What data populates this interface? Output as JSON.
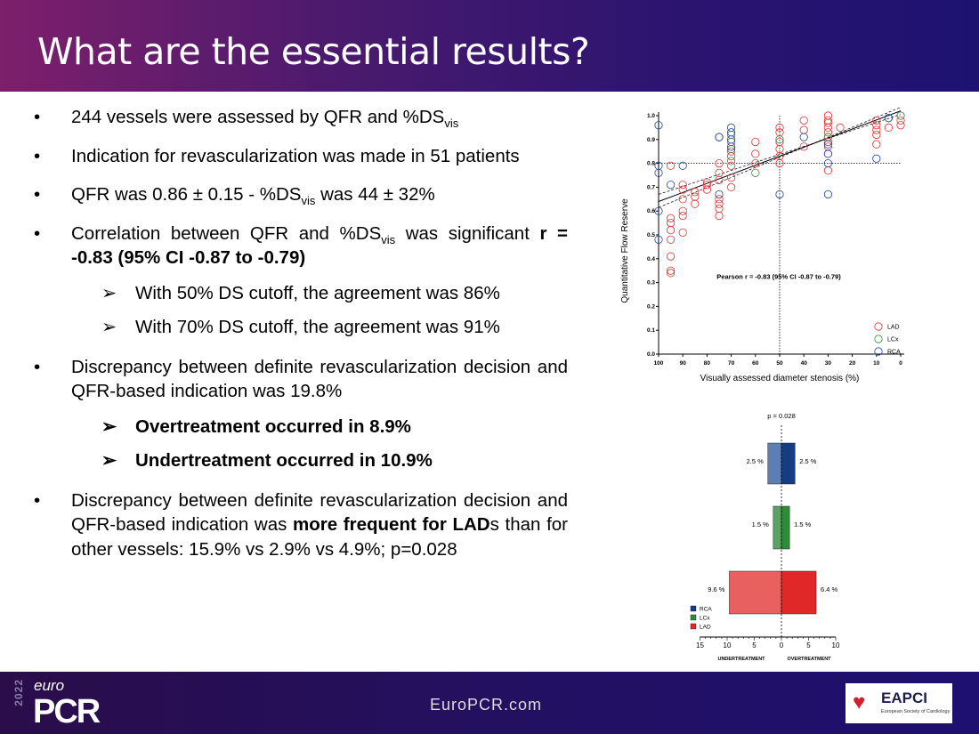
{
  "title": "What are the essential results?",
  "bullets": {
    "b1": {
      "a": "244 vessels were assessed by QFR and %DS",
      "sub": "vis"
    },
    "b2": "Indication for revascularization was made in 51 patients",
    "b3": {
      "a": "QFR was 0.86 ± 0.15 - %DS",
      "sub": "vis",
      "b": " was 44 ± 32%"
    },
    "b4": {
      "a": "Correlation between QFR and %DS",
      "sub": "vis",
      "b": " was significant ",
      "bold": "r = -0.83 (95% CI -0.87 to -0.79)"
    },
    "s1": "With 50% DS cutoff, the agreement was 86%",
    "s2": "With 70% DS cutoff, the agreement was 91%",
    "b5": "Discrepancy between definite revascularization decision and QFR-based indication was 19.8%",
    "s3": "Overtreatment occurred in 8.9%",
    "s4": "Undertreatment occurred in 10.9%",
    "b6": {
      "a": "Discrepancy between definite revascularization decision and QFR-based indication was ",
      "bold": "more frequent for LAD",
      "b": "s than for other vessels: 15.9% vs 2.9% vs 4.9%; p=0.028"
    }
  },
  "bullet_symbol": "•",
  "sub_symbol": "➢",
  "footer": {
    "year": "2022",
    "euro": "euro",
    "pcr": "PCR",
    "site": "EuroPCR.com",
    "logo_name": "EAPCI",
    "logo_sub": "European Society of Cardiology"
  },
  "chart_data": [
    {
      "type": "scatter",
      "title": "",
      "xlabel": "Visually assessed diameter stenosis (%)",
      "ylabel": "Quantitative Flow Reserve",
      "xlim": [
        100,
        0
      ],
      "ylim": [
        0,
        1.0
      ],
      "x_ticks": [
        "100",
        "90",
        "80",
        "70",
        "60",
        "50",
        "40",
        "30",
        "20",
        "10",
        "0"
      ],
      "y_ticks": [
        "0.0",
        "0.1",
        "0.2",
        "0.3",
        "0.4",
        "0.5",
        "0.6",
        "0.7",
        "0.8",
        "0.9",
        "1.0"
      ],
      "annotation": "Pearson r = -0.83 (95% CI -0.87 to -0.79)",
      "reference_lines": {
        "x": 50,
        "y": 0.8
      },
      "fit_line": [
        [
          100,
          0.64
        ],
        [
          0,
          1.02
        ]
      ],
      "colors": {
        "LAD": "#e03030",
        "LCx": "#2e8b3a",
        "RCA": "#1f3fb0"
      },
      "series": [
        {
          "name": "LAD",
          "points": [
            [
              95,
              0.79
            ],
            [
              95,
              0.57
            ],
            [
              95,
              0.55
            ],
            [
              95,
              0.52
            ],
            [
              95,
              0.48
            ],
            [
              95,
              0.41
            ],
            [
              95,
              0.35
            ],
            [
              95,
              0.34
            ],
            [
              90,
              0.71
            ],
            [
              90,
              0.69
            ],
            [
              90,
              0.65
            ],
            [
              90,
              0.6
            ],
            [
              90,
              0.58
            ],
            [
              90,
              0.51
            ],
            [
              85,
              0.68
            ],
            [
              85,
              0.66
            ],
            [
              85,
              0.63
            ],
            [
              80,
              0.72
            ],
            [
              80,
              0.71
            ],
            [
              80,
              0.69
            ],
            [
              75,
              0.8
            ],
            [
              75,
              0.76
            ],
            [
              75,
              0.73
            ],
            [
              75,
              0.65
            ],
            [
              75,
              0.63
            ],
            [
              75,
              0.61
            ],
            [
              75,
              0.58
            ],
            [
              70,
              0.89
            ],
            [
              70,
              0.85
            ],
            [
              70,
              0.83
            ],
            [
              70,
              0.79
            ],
            [
              70,
              0.74
            ],
            [
              70,
              0.7
            ],
            [
              60,
              0.89
            ],
            [
              60,
              0.84
            ],
            [
              60,
              0.8
            ],
            [
              50,
              0.95
            ],
            [
              50,
              0.93
            ],
            [
              50,
              0.89
            ],
            [
              50,
              0.86
            ],
            [
              50,
              0.83
            ],
            [
              50,
              0.8
            ],
            [
              40,
              0.98
            ],
            [
              40,
              0.94
            ],
            [
              40,
              0.87
            ],
            [
              30,
              1.0
            ],
            [
              30,
              0.98
            ],
            [
              30,
              0.97
            ],
            [
              30,
              0.95
            ],
            [
              30,
              0.93
            ],
            [
              30,
              0.91
            ],
            [
              30,
              0.89
            ],
            [
              30,
              0.87
            ],
            [
              30,
              0.84
            ],
            [
              30,
              0.77
            ],
            [
              25,
              0.95
            ],
            [
              10,
              0.98
            ],
            [
              10,
              0.96
            ],
            [
              10,
              0.94
            ],
            [
              10,
              0.92
            ],
            [
              10,
              0.88
            ],
            [
              5,
              0.95
            ],
            [
              0,
              0.98
            ],
            [
              0,
              0.96
            ]
          ]
        },
        {
          "name": "LCx",
          "points": [
            [
              75,
              0.91
            ],
            [
              70,
              0.92
            ],
            [
              70,
              0.86
            ],
            [
              70,
              0.81
            ],
            [
              60,
              0.76
            ],
            [
              50,
              0.9
            ],
            [
              30,
              0.91
            ],
            [
              5,
              0.99
            ],
            [
              0,
              1.0
            ]
          ]
        },
        {
          "name": "RCA",
          "points": [
            [
              100,
              0.96
            ],
            [
              100,
              0.79
            ],
            [
              100,
              0.76
            ],
            [
              100,
              0.6
            ],
            [
              100,
              0.48
            ],
            [
              95,
              0.71
            ],
            [
              90,
              0.79
            ],
            [
              75,
              0.91
            ],
            [
              75,
              0.67
            ],
            [
              70,
              0.95
            ],
            [
              70,
              0.93
            ],
            [
              70,
              0.9
            ],
            [
              70,
              0.87
            ],
            [
              50,
              0.67
            ],
            [
              40,
              0.91
            ],
            [
              30,
              0.88
            ],
            [
              30,
              0.84
            ],
            [
              30,
              0.8
            ],
            [
              30,
              0.67
            ],
            [
              10,
              0.82
            ],
            [
              5,
              0.99
            ]
          ]
        }
      ]
    },
    {
      "type": "bar",
      "orientation": "horizontal",
      "title": "p = 0.028",
      "xlim": [
        -15,
        10
      ],
      "x_ticks": [
        "15",
        "10",
        "5",
        "0",
        "5",
        "10"
      ],
      "left_label": "UNDERTREATMENT",
      "right_label": "OVERTREATMENT",
      "categories": [
        "RCA",
        "LCx",
        "LAD"
      ],
      "colors": {
        "RCA": {
          "under": "#5b7fb5",
          "over": "#143d82"
        },
        "LCx": {
          "under": "#5aa362",
          "over": "#2e8b3a"
        },
        "LAD": {
          "under": "#e86060",
          "over": "#e02828"
        }
      },
      "series": [
        {
          "name": "UNDERTREATMENT",
          "values": [
            2.5,
            1.5,
            9.6
          ],
          "labels": [
            "2.5 %",
            "1.5 %",
            "9.6 %"
          ]
        },
        {
          "name": "OVERTREATMENT",
          "values": [
            2.5,
            1.5,
            6.4
          ],
          "labels": [
            "2.5 %",
            "1.5 %",
            "6.4 %"
          ]
        }
      ]
    }
  ]
}
